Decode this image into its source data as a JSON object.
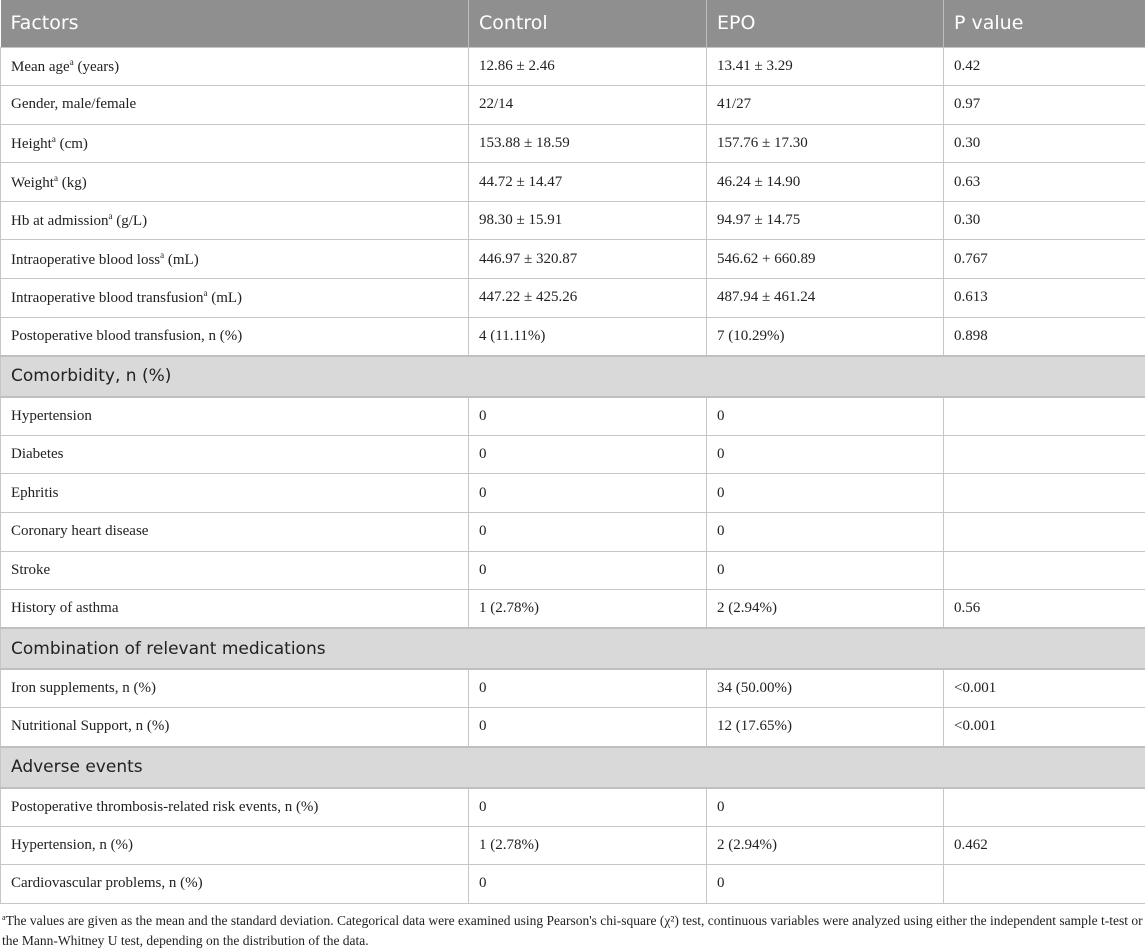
{
  "table": {
    "headers": [
      "Factors",
      "Control",
      "EPO",
      "P value"
    ],
    "rows": [
      {
        "label": "Mean age",
        "sup": "a",
        "label_after": " (years)",
        "control": "12.86 ± 2.46",
        "epo": "13.41 ± 3.29",
        "p": "0.42"
      },
      {
        "label": "Gender, male/female",
        "control": "22/14",
        "epo": "41/27",
        "p": "0.97"
      },
      {
        "label": "Height",
        "sup": "a",
        "label_after": " (cm)",
        "control": "153.88 ± 18.59",
        "epo": "157.76 ± 17.30",
        "p": "0.30"
      },
      {
        "label": "Weight",
        "sup": "a",
        "label_after": " (kg)",
        "control": "44.72 ± 14.47",
        "epo": "46.24 ± 14.90",
        "p": "0.63"
      },
      {
        "label": "Hb at admission",
        "sup": "a",
        "label_after": " (g/L)",
        "control": "98.30 ± 15.91",
        "epo": "94.97 ± 14.75",
        "p": "0.30"
      },
      {
        "label": "Intraoperative blood loss",
        "sup": "a",
        "label_after": " (mL)",
        "control": "446.97 ± 320.87",
        "epo": "546.62 + 660.89",
        "p": "0.767"
      },
      {
        "label": "Intraoperative blood transfusion",
        "sup": "a",
        "label_after": " (mL)",
        "control": "447.22 ± 425.26",
        "epo": "487.94 ± 461.24",
        "p": "0.613"
      },
      {
        "label": "Postoperative blood transfusion, n (%)",
        "control": "4 (11.11%)",
        "epo": "7 (10.29%)",
        "p": "0.898"
      },
      {
        "section": "Comorbidity, n (%)"
      },
      {
        "label": "Hypertension",
        "control": "0",
        "epo": "0",
        "p": ""
      },
      {
        "label": "Diabetes",
        "control": "0",
        "epo": "0",
        "p": ""
      },
      {
        "label": "Ephritis",
        "control": "0",
        "epo": "0",
        "p": ""
      },
      {
        "label": "Coronary heart disease",
        "control": "0",
        "epo": "0",
        "p": ""
      },
      {
        "label": "Stroke",
        "control": "0",
        "epo": "0",
        "p": ""
      },
      {
        "label": "History of asthma",
        "control": "1 (2.78%)",
        "epo": "2 (2.94%)",
        "p": "0.56"
      },
      {
        "section": "Combination of relevant medications"
      },
      {
        "label": "Iron supplements, n (%)",
        "control": "0",
        "epo": "34 (50.00%)",
        "p": "<0.001"
      },
      {
        "label": "Nutritional Support, n (%)",
        "control": "0",
        "epo": "12 (17.65%)",
        "p": "<0.001"
      },
      {
        "section": "Adverse events"
      },
      {
        "label": "Postoperative thrombosis-related risk events, n (%)",
        "control": "0",
        "epo": "0",
        "p": ""
      },
      {
        "label": "Hypertension, n (%)",
        "control": "1 (2.78%)",
        "epo": "2 (2.94%)",
        "p": "0.462"
      },
      {
        "label": "Cardiovascular problems, n (%)",
        "control": "0",
        "epo": "0",
        "p": ""
      }
    ]
  },
  "footnote": {
    "sup": "a",
    "text": "The values are given as the mean and the standard deviation. Categorical data were examined using Pearson's chi-square (χ²) test, continuous variables were analyzed using either the independent sample t-test or the Mann-Whitney U test, depending on the distribution of the data."
  },
  "colors": {
    "header_bg": "#8f8f8f",
    "section_bg": "#d9d9d9"
  }
}
